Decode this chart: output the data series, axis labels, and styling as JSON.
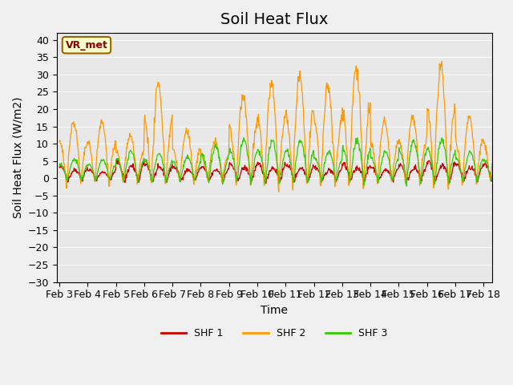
{
  "title": "Soil Heat Flux",
  "ylabel": "Soil Heat Flux (W/m2)",
  "xlabel": "Time",
  "ylim": [
    -30,
    42
  ],
  "yticks": [
    -30,
    -25,
    -20,
    -15,
    -10,
    -5,
    0,
    5,
    10,
    15,
    20,
    25,
    30,
    35,
    40
  ],
  "xtick_labels": [
    "Feb 3",
    "Feb 4",
    "Feb 5",
    "Feb 6",
    "Feb 7",
    "Feb 8",
    "Feb 9",
    "Feb 10",
    "Feb 11",
    "Feb 12",
    "Feb 13",
    "Feb 14",
    "Feb 15",
    "Feb 16",
    "Feb 17",
    "Feb 18"
  ],
  "colors": {
    "SHF1": "#cc0000",
    "SHF2": "#ff9900",
    "SHF3": "#33cc00"
  },
  "legend_labels": [
    "SHF 1",
    "SHF 2",
    "SHF 3"
  ],
  "vr_met_label": "VR_met",
  "bg_color": "#e8e8e8",
  "fig_bg_color": "#f0f0f0",
  "title_fontsize": 14,
  "axis_label_fontsize": 10,
  "tick_fontsize": 9,
  "n_points": 960,
  "n_days": 16,
  "day_amplitudes2": [
    0.6,
    0.6,
    0.45,
    1.0,
    0.5,
    0.4,
    0.9,
    1.0,
    1.1,
    1.0,
    1.2,
    0.6,
    0.65,
    1.2,
    0.65,
    0.6
  ],
  "day_amplitudes1": [
    0.4,
    0.3,
    0.6,
    0.5,
    0.4,
    0.4,
    0.5,
    0.5,
    0.5,
    0.4,
    0.5,
    0.4,
    0.5,
    0.6,
    0.5,
    0.5
  ],
  "day_amplitudes3": [
    0.35,
    0.35,
    0.5,
    0.45,
    0.4,
    0.6,
    0.7,
    0.7,
    0.7,
    0.5,
    0.7,
    0.5,
    0.7,
    0.7,
    0.5,
    0.45
  ],
  "shf1_amplitude": 8,
  "shf2_amplitude": 30,
  "shf3_amplitude": 18,
  "shf1_night": 10,
  "shf2_night": 20,
  "shf3_night": 14,
  "shf1_bias": -2,
  "shf2_bias": -3,
  "shf3_bias": -2.5,
  "shf1_phase": 0.3,
  "shf2_phase": 0.25,
  "shf3_phase": 0.28
}
